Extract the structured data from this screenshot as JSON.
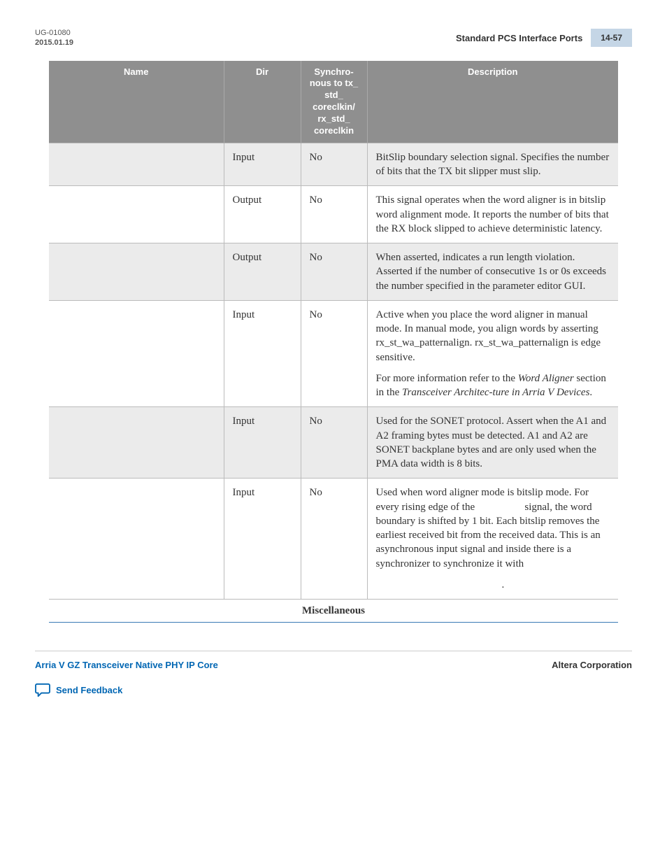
{
  "header": {
    "doc_id": "UG-01080",
    "doc_date": "2015.01.19",
    "section_title": "Standard PCS Interface Ports",
    "page_number": "14-57"
  },
  "table": {
    "columns": {
      "name": "Name",
      "dir": "Dir",
      "sync": "Synchro-\nnous to tx_\nstd_\ncoreclkin/\nrx_std_\ncoreclkin",
      "desc": "Description"
    },
    "rows": [
      {
        "name": "",
        "dir": "Input",
        "sync": "No",
        "desc_paras": [
          "BitSlip boundary selection signal. Specifies the number of bits that the TX bit slipper must slip."
        ],
        "shade": "odd"
      },
      {
        "name": "",
        "dir": "Output",
        "sync": "No",
        "desc_paras": [
          "This signal operates when the word aligner is in bitslip word alignment mode. It reports the number of bits that the RX block slipped to achieve deterministic latency."
        ],
        "shade": "even"
      },
      {
        "name": "",
        "dir": "Output",
        "sync": "No",
        "desc_paras": [
          "When asserted, indicates a run length violation. Asserted if the number of consecutive 1s or 0s exceeds the number specified in the parameter editor GUI."
        ],
        "shade": "odd"
      },
      {
        "name": "",
        "dir": "Input",
        "sync": "No",
        "desc_paras": [
          "Active when you place the word aligner in manual mode. In manual mode, you align words by asserting rx_st_wa_patternalign. rx_st_wa_patternalign is edge sensitive.",
          "For more information refer to the <span class=\"italic\">Word Aligner</span> section in the <span class=\"italic\">Transceiver Architec-ture in Arria V Devices</span>."
        ],
        "shade": "even"
      },
      {
        "name": "",
        "dir": "Input",
        "sync": "No",
        "desc_paras": [
          "Used for the SONET protocol. Assert when the A1 and A2 framing bytes must be detected. A1 and A2 are SONET backplane bytes and are only used when the PMA data width is 8 bits."
        ],
        "shade": "odd"
      },
      {
        "name": "",
        "dir": "Input",
        "sync": "No",
        "desc_paras": [
          "Used when word aligner mode is bitslip mode. For every rising edge of the &nbsp;&nbsp;&nbsp;&nbsp;&nbsp;&nbsp;&nbsp;&nbsp;&nbsp;&nbsp;&nbsp;&nbsp;&nbsp;&nbsp;&nbsp;&nbsp;&nbsp; signal, the word boundary is shifted by 1 bit. Each bitslip removes the earliest received bit from the received data. This is an asynchronous input signal and inside there is a synchronizer to synchronize it with",
          "&nbsp;&nbsp;&nbsp;&nbsp;&nbsp;&nbsp;&nbsp;&nbsp;&nbsp;&nbsp;&nbsp;&nbsp;&nbsp;&nbsp;&nbsp;&nbsp;&nbsp;&nbsp;&nbsp;&nbsp;&nbsp;&nbsp;&nbsp;&nbsp;&nbsp;&nbsp;&nbsp;&nbsp;&nbsp;&nbsp;&nbsp;&nbsp;&nbsp;&nbsp;&nbsp;&nbsp;&nbsp;&nbsp;&nbsp;&nbsp;&nbsp;&nbsp;&nbsp;&nbsp;&nbsp;&nbsp;&nbsp;&nbsp;."
        ],
        "shade": "even"
      }
    ],
    "section_label": "Miscellaneous"
  },
  "footer": {
    "left": "Arria V GZ Transceiver Native PHY IP Core",
    "right": "Altera Corporation",
    "feedback": "Send Feedback"
  },
  "colors": {
    "header_gray": "#8f8f8f",
    "pagebox_blue": "#c5d6e6",
    "link_blue": "#0066b3",
    "row_shade": "#ebebeb",
    "section_underline": "#3a7ab5"
  }
}
